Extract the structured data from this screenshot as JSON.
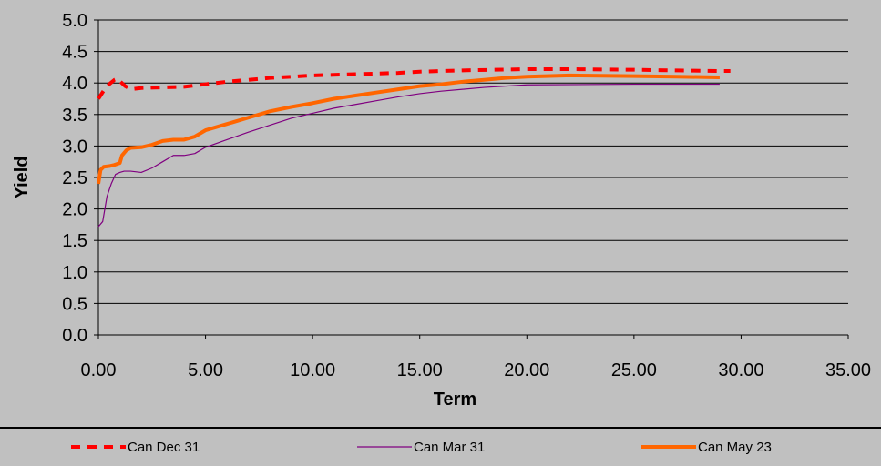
{
  "colors": {
    "background": "#c0c0c0",
    "gridline": "#000000",
    "series_dec31": "#ff0000",
    "series_mar31": "#800080",
    "series_may23": "#ff6600"
  },
  "chart_data": {
    "type": "line",
    "title": "",
    "xlabel": "Term",
    "ylabel": "Yield",
    "xlim": [
      0,
      35
    ],
    "ylim": [
      0,
      5
    ],
    "grid": true,
    "legend_position": "bottom",
    "x_ticks": [
      "0.00",
      "5.00",
      "10.00",
      "15.00",
      "20.00",
      "25.00",
      "30.00",
      "35.00"
    ],
    "y_ticks": [
      "0.0",
      "0.5",
      "1.0",
      "1.5",
      "2.0",
      "2.5",
      "3.0",
      "3.5",
      "4.0",
      "4.5",
      "5.0"
    ],
    "series": [
      {
        "name": "Can Dec 31",
        "color": "#ff0000",
        "style": "dashed",
        "x": [
          0.0,
          0.25,
          0.5,
          0.75,
          0.9,
          1.0,
          1.25,
          1.5,
          2.0,
          3.0,
          4.0,
          5.0,
          6.0,
          7.0,
          8.0,
          10.0,
          12.0,
          14.0,
          15.0,
          17.0,
          20.0,
          22.0,
          25.0,
          27.0,
          29.0,
          29.5
        ],
        "values": [
          3.75,
          3.88,
          3.98,
          4.05,
          4.07,
          4.03,
          3.95,
          3.9,
          3.92,
          3.93,
          3.94,
          3.98,
          4.02,
          4.05,
          4.08,
          4.12,
          4.14,
          4.16,
          4.18,
          4.2,
          4.22,
          4.22,
          4.21,
          4.2,
          4.19,
          4.19
        ]
      },
      {
        "name": "Can Mar 31",
        "color": "#800080",
        "style": "solid",
        "x": [
          0.0,
          0.2,
          0.4,
          0.6,
          0.8,
          1.0,
          1.2,
          1.5,
          2.0,
          2.5,
          3.0,
          3.5,
          4.0,
          4.5,
          5.0,
          6.0,
          7.0,
          8.0,
          9.0,
          10.0,
          11.0,
          12.0,
          13.0,
          14.0,
          15.0,
          16.0,
          17.0,
          18.0,
          19.0,
          20.0,
          25.0,
          29.0
        ],
        "values": [
          1.72,
          1.8,
          2.2,
          2.4,
          2.55,
          2.58,
          2.6,
          2.6,
          2.58,
          2.65,
          2.75,
          2.85,
          2.85,
          2.88,
          2.98,
          3.1,
          3.22,
          3.33,
          3.44,
          3.52,
          3.6,
          3.66,
          3.72,
          3.78,
          3.83,
          3.87,
          3.9,
          3.93,
          3.95,
          3.97,
          3.98,
          3.98
        ]
      },
      {
        "name": "Can May 23",
        "color": "#ff6600",
        "style": "solid",
        "x": [
          0.0,
          0.1,
          0.25,
          0.5,
          0.75,
          1.0,
          1.1,
          1.3,
          1.5,
          2.0,
          2.5,
          3.0,
          3.5,
          4.0,
          4.5,
          5.0,
          6.0,
          7.0,
          8.0,
          9.0,
          10.0,
          11.0,
          12.0,
          13.0,
          14.0,
          15.0,
          16.0,
          17.0,
          18.0,
          19.0,
          20.0,
          22.0,
          25.0,
          27.0,
          29.0
        ],
        "values": [
          2.4,
          2.62,
          2.67,
          2.68,
          2.7,
          2.73,
          2.85,
          2.93,
          2.97,
          2.98,
          3.02,
          3.08,
          3.1,
          3.1,
          3.15,
          3.25,
          3.35,
          3.45,
          3.55,
          3.62,
          3.68,
          3.75,
          3.8,
          3.85,
          3.9,
          3.95,
          3.98,
          4.02,
          4.05,
          4.08,
          4.1,
          4.12,
          4.11,
          4.1,
          4.09
        ]
      }
    ]
  }
}
